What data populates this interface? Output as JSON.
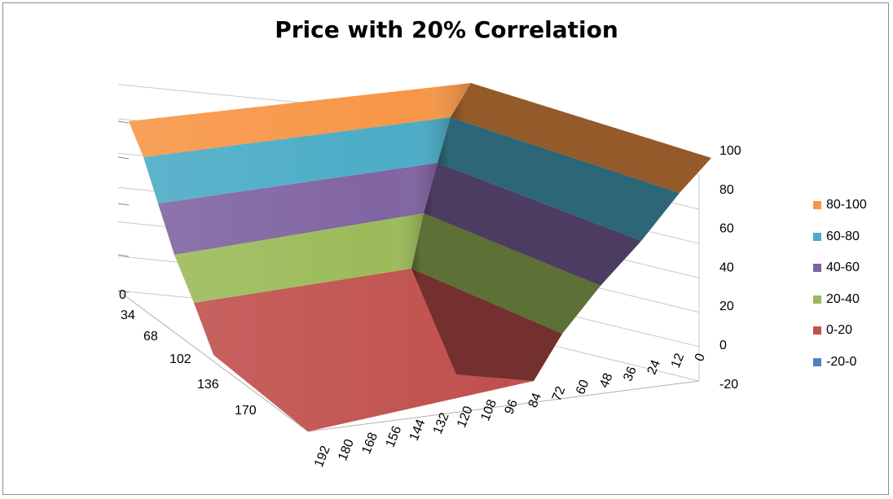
{
  "chart_data": {
    "type": "surface",
    "title": "Price with 20% Correlation",
    "z_ticks": [
      "100",
      "80",
      "60",
      "40",
      "20",
      "0",
      "-20"
    ],
    "z_range": [
      -20,
      100
    ],
    "x_ticks": [
      "192",
      "180",
      "168",
      "156",
      "144",
      "132",
      "120",
      "108",
      "96",
      "84",
      "72",
      "60",
      "48",
      "36",
      "24",
      "12",
      "0"
    ],
    "y_ticks": [
      "0",
      "34",
      "68",
      "102",
      "136",
      "170"
    ],
    "legend": [
      {
        "label": "80-100",
        "color": "#f79646"
      },
      {
        "label": "60-80",
        "color": "#4bacc6"
      },
      {
        "label": "40-60",
        "color": "#8064a2"
      },
      {
        "label": "20-40",
        "color": "#9bbb59"
      },
      {
        "label": "0-20",
        "color": "#c0504d"
      },
      {
        "label": "-20-0",
        "color": "#4f81bd"
      }
    ],
    "grid": true,
    "legend_position": "right"
  }
}
